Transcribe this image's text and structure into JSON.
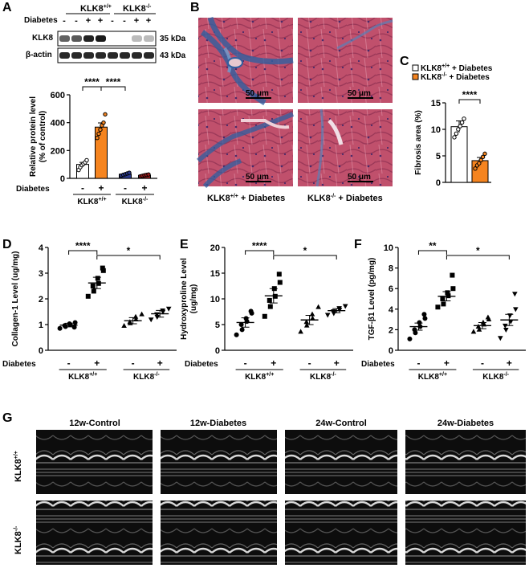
{
  "panel_labels": {
    "A": "A",
    "B": "B",
    "C": "C",
    "D": "D",
    "E": "E",
    "F": "F",
    "G": "G"
  },
  "blot": {
    "genotype_wt": "KLK8",
    "genotype_ko": "KLK8",
    "sup_wt": "+/+",
    "sup_ko": "-/-",
    "diabetes_label": "Diabetes",
    "diabetes_marks": [
      "-",
      "-",
      "+",
      "+",
      "-",
      "-",
      "+",
      "+"
    ],
    "row1_label": "KLK8",
    "row1_size": "35 kDa",
    "row2_label": "β-actin",
    "row2_size": "43 kDa"
  },
  "histology": {
    "scale_bar": "50 μm",
    "caption_wt": "KLK8",
    "caption_wt_sup": "+/+",
    "caption_wt_rest": " + Diabetes",
    "caption_ko": "KLK8",
    "caption_ko_sup": "-/-",
    "caption_ko_rest": " + Diabetes"
  },
  "chart_data": [
    {
      "panel": "A",
      "type": "bar",
      "ylabel": "Relative protein level (% of control)",
      "ylabel_line1": "Relative protein level",
      "ylabel_line2": "(% of control)",
      "ylim": [
        0,
        600
      ],
      "yticks": [
        "0",
        "200",
        "400",
        "600"
      ],
      "xlabel_row": "Diabetes",
      "x_marks": [
        "-",
        "+",
        "-",
        "+"
      ],
      "group_labels": [
        "KLK8+/+",
        "KLK8-/-"
      ],
      "values": [
        100,
        368,
        30,
        22
      ],
      "errors": [
        15,
        30,
        6,
        5
      ],
      "colors": [
        "#ffffff",
        "#f5841f",
        "#2b3a8f",
        "#9b1b1b"
      ],
      "points": [
        [
          60,
          80,
          95,
          105,
          115,
          130
        ],
        [
          290,
          320,
          350,
          380,
          400,
          460
        ],
        [
          20,
          25,
          30,
          35,
          40
        ],
        [
          15,
          18,
          22,
          25,
          28
        ]
      ],
      "significance": [
        "****",
        "****"
      ]
    },
    {
      "panel": "C",
      "type": "bar",
      "ylabel": "Fibrosis area (%)",
      "ylim": [
        0,
        15
      ],
      "yticks": [
        "0",
        "5",
        "10",
        "15"
      ],
      "legend": [
        "KLK8+/+ + Diabetes",
        "KLK8-/- + Diabetes"
      ],
      "values": [
        10.5,
        4.1
      ],
      "errors": [
        1.1,
        0.6
      ],
      "colors": [
        "#ffffff",
        "#f5841f"
      ],
      "points": [
        [
          8.5,
          9.2,
          10,
          10.6,
          11.3,
          12
        ],
        [
          2.6,
          3.2,
          3.6,
          4.2,
          4.8,
          5.4
        ]
      ],
      "significance": [
        "****"
      ]
    },
    {
      "panel": "D",
      "type": "scatter",
      "ylabel": "Collagen-1 Level (ug/mg)",
      "ylim": [
        0,
        4
      ],
      "yticks": [
        "0",
        "1",
        "2",
        "3",
        "4"
      ],
      "x_marks": [
        "-",
        "+",
        "-",
        "+"
      ],
      "group_labels": [
        "KLK8+/+",
        "KLK8-/-"
      ],
      "means": [
        0.98,
        2.62,
        1.15,
        1.42
      ],
      "errors": [
        0.07,
        0.22,
        0.12,
        0.13
      ],
      "points": [
        [
          0.85,
          0.92,
          0.96,
          1.0,
          1.03,
          1.08,
          0.9
        ],
        [
          2.1,
          2.3,
          2.5,
          2.6,
          2.8,
          3.1,
          3.2
        ],
        [
          0.95,
          1.05,
          1.1,
          1.2,
          1.3,
          1.4
        ],
        [
          1.2,
          1.3,
          1.4,
          1.5,
          1.55,
          1.62
        ]
      ],
      "significance": [
        "****",
        "*"
      ]
    },
    {
      "panel": "E",
      "type": "scatter",
      "ylabel": "Hydroxyproline Level (ug/mg)",
      "ylabel_line1": "Hydroxyproline Level",
      "ylabel_line2": "(ug/mg)",
      "ylim": [
        0,
        20
      ],
      "yticks": [
        "0",
        "5",
        "10",
        "15",
        "20"
      ],
      "x_marks": [
        "-",
        "+",
        "-",
        "+"
      ],
      "group_labels": [
        "KLK8+/+",
        "KLK8-/-"
      ],
      "means": [
        5.4,
        10.6,
        5.9,
        7.7
      ],
      "errors": [
        0.9,
        1.4,
        0.9,
        0.4
      ],
      "points": [
        [
          3.0,
          4.0,
          5.0,
          5.6,
          6.2,
          7.2,
          7.6
        ],
        [
          6.6,
          8.5,
          9.7,
          10.5,
          12.0,
          13.2,
          14.8
        ],
        [
          3.6,
          4.8,
          5.5,
          6.2,
          7.0,
          8.4
        ],
        [
          6.9,
          7.2,
          7.6,
          7.9,
          8.2,
          8.6
        ]
      ],
      "significance": [
        "****",
        "*"
      ]
    },
    {
      "panel": "F",
      "type": "scatter",
      "ylabel": "TGF-β1 Level (pg/mg)",
      "ylim": [
        0,
        10
      ],
      "yticks": [
        "0",
        "2",
        "4",
        "6",
        "8",
        "10"
      ],
      "x_marks": [
        "-",
        "+",
        "-",
        "+"
      ],
      "group_labels": [
        "KLK8+/+",
        "KLK8-/-"
      ],
      "means": [
        2.3,
        5.25,
        2.4,
        2.95
      ],
      "errors": [
        0.35,
        0.45,
        0.3,
        0.55
      ],
      "points": [
        [
          1.1,
          1.7,
          2.0,
          2.3,
          2.7,
          3.1,
          3.5
        ],
        [
          4.2,
          4.5,
          5.0,
          5.3,
          5.6,
          6.0,
          7.3
        ],
        [
          1.8,
          2.0,
          2.3,
          2.5,
          2.7,
          3.0,
          3.2
        ],
        [
          1.2,
          2.0,
          2.4,
          2.8,
          3.4,
          4.0,
          5.5
        ]
      ],
      "significance": [
        "**",
        "*"
      ]
    }
  ],
  "echo": {
    "columns": [
      "12w-Control",
      "12w-Diabetes",
      "24w-Control",
      "24w-Diabetes"
    ],
    "row_wt": "KLK8",
    "row_wt_sup": "+/+",
    "row_ko": "KLK8",
    "row_ko_sup": "-/-"
  }
}
